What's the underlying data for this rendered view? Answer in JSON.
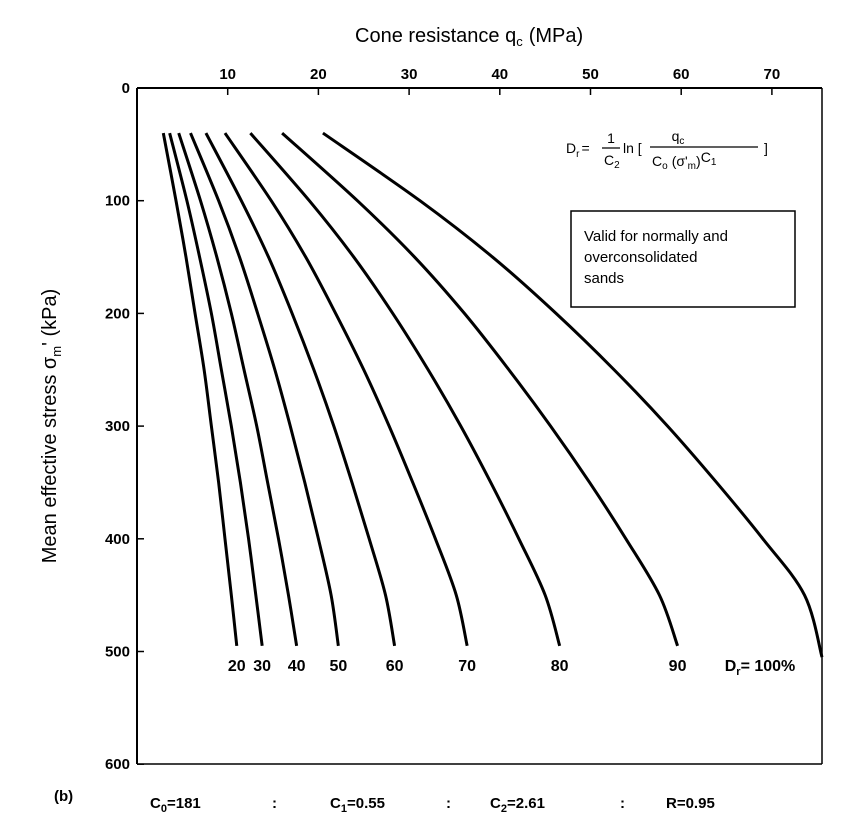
{
  "chart_data": {
    "type": "line",
    "title": "Cone resistance q_c (MPa)",
    "x_axis": {
      "label": "Cone resistance q",
      "label_sub": "c",
      "label_unit": "(MPa)",
      "position": "top",
      "range": [
        0,
        75
      ],
      "ticks": [
        0,
        10,
        20,
        30,
        40,
        50,
        60,
        70
      ]
    },
    "y_axis": {
      "label": "Mean effective stress σ",
      "label_sub": "m",
      "label_unit": "' (kPa)",
      "range": [
        0,
        600
      ],
      "inverted": true,
      "ticks": [
        0,
        100,
        200,
        300,
        400,
        500,
        600
      ]
    },
    "grid": false,
    "series": [
      {
        "name": "20",
        "points": [
          [
            2.9,
            40
          ],
          [
            4.3,
            100
          ],
          [
            5.4,
            150
          ],
          [
            6.4,
            200
          ],
          [
            7.4,
            250
          ],
          [
            8.2,
            300
          ],
          [
            9.0,
            350
          ],
          [
            9.7,
            400
          ],
          [
            10.4,
            450
          ],
          [
            11.0,
            495
          ]
        ]
      },
      {
        "name": "30",
        "points": [
          [
            3.6,
            40
          ],
          [
            5.5,
            100
          ],
          [
            6.9,
            150
          ],
          [
            8.2,
            200
          ],
          [
            9.3,
            250
          ],
          [
            10.4,
            300
          ],
          [
            11.4,
            350
          ],
          [
            12.3,
            400
          ],
          [
            13.1,
            450
          ],
          [
            13.8,
            495
          ]
        ]
      },
      {
        "name": "40",
        "points": [
          [
            4.6,
            40
          ],
          [
            7.0,
            100
          ],
          [
            8.8,
            150
          ],
          [
            10.4,
            200
          ],
          [
            11.8,
            250
          ],
          [
            13.2,
            300
          ],
          [
            14.4,
            350
          ],
          [
            15.6,
            400
          ],
          [
            16.7,
            450
          ],
          [
            17.6,
            495
          ]
        ]
      },
      {
        "name": "50",
        "points": [
          [
            5.9,
            40
          ],
          [
            9.0,
            100
          ],
          [
            11.3,
            150
          ],
          [
            13.3,
            200
          ],
          [
            15.2,
            250
          ],
          [
            16.9,
            300
          ],
          [
            18.5,
            350
          ],
          [
            20.0,
            400
          ],
          [
            21.4,
            450
          ],
          [
            22.2,
            495
          ]
        ]
      },
      {
        "name": "60",
        "points": [
          [
            7.6,
            40
          ],
          [
            11.5,
            100
          ],
          [
            14.5,
            150
          ],
          [
            17.1,
            200
          ],
          [
            19.5,
            250
          ],
          [
            21.7,
            300
          ],
          [
            23.7,
            350
          ],
          [
            25.6,
            400
          ],
          [
            27.4,
            450
          ],
          [
            28.4,
            495
          ]
        ]
      },
      {
        "name": "70",
        "points": [
          [
            9.7,
            40
          ],
          [
            14.8,
            100
          ],
          [
            18.6,
            150
          ],
          [
            21.9,
            200
          ],
          [
            25.0,
            250
          ],
          [
            27.8,
            300
          ],
          [
            30.4,
            350
          ],
          [
            32.9,
            400
          ],
          [
            35.2,
            450
          ],
          [
            36.4,
            495
          ]
        ]
      },
      {
        "name": "80",
        "points": [
          [
            12.5,
            40
          ],
          [
            19.0,
            100
          ],
          [
            23.9,
            150
          ],
          [
            28.2,
            200
          ],
          [
            32.1,
            250
          ],
          [
            35.7,
            300
          ],
          [
            39.0,
            350
          ],
          [
            42.1,
            400
          ],
          [
            45.0,
            450
          ],
          [
            46.6,
            495
          ]
        ]
      },
      {
        "name": "90",
        "points": [
          [
            16.0,
            40
          ],
          [
            24.3,
            100
          ],
          [
            30.6,
            150
          ],
          [
            36.1,
            200
          ],
          [
            41.0,
            250
          ],
          [
            45.6,
            300
          ],
          [
            49.9,
            350
          ],
          [
            53.9,
            400
          ],
          [
            57.6,
            450
          ],
          [
            59.6,
            495
          ]
        ]
      },
      {
        "name": "Dr= 100%",
        "points": [
          [
            20.5,
            40
          ],
          [
            31.2,
            100
          ],
          [
            39.2,
            150
          ],
          [
            46.2,
            200
          ],
          [
            52.6,
            250
          ],
          [
            58.5,
            300
          ],
          [
            63.9,
            350
          ],
          [
            69.0,
            400
          ],
          [
            73.6,
            450
          ],
          [
            76.0,
            505
          ]
        ]
      }
    ],
    "curve_labels": [
      "20",
      "30",
      "40",
      "50",
      "60",
      "70",
      "80",
      "90",
      "Dr= 100%"
    ],
    "curve_label_stress": 510,
    "formula": {
      "lhs": "D",
      "lhs_sub": "r",
      "eq": "=",
      "frac_num": "1",
      "frac_den": "C",
      "frac_den_sub": "2",
      "ln": "ln [",
      "inner_num": "q",
      "inner_num_sub": "c",
      "inner_den_a": "C",
      "inner_den_a_sub": "o",
      "inner_den_b": "(σ'",
      "inner_den_b_sub": "m",
      "inner_den_c": ")",
      "inner_den_d": "C",
      "inner_den_d_sub": "1",
      "close": "]"
    },
    "note": [
      "Valid for normally and",
      "overconsolidated",
      "sands"
    ],
    "panel_label": "(b)",
    "parameters": [
      "C0=181",
      ":",
      "C1=0.55",
      ":",
      "C2=2.61",
      ":",
      "R=0.95"
    ],
    "colors": {
      "line": "#000000",
      "background": "#ffffff"
    }
  }
}
